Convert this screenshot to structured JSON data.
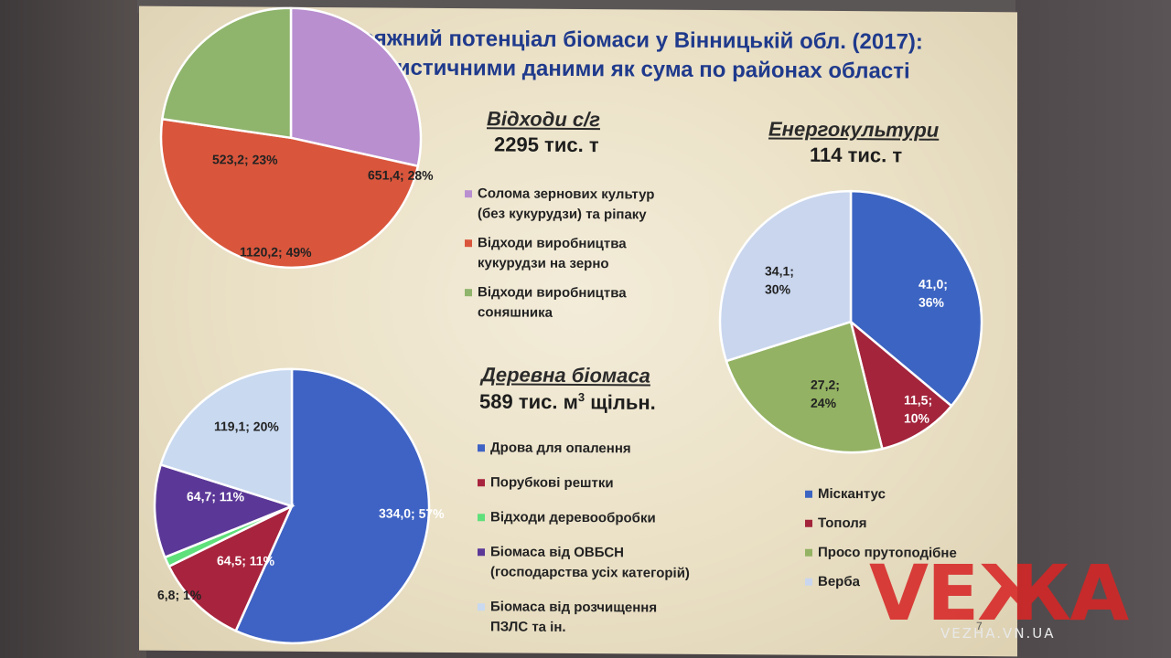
{
  "title": {
    "line1": "Технічно досяжний потенціал біомаси у Вінницькій обл. (2017):",
    "line2": "оцінка за статистичними даними як сума по районах області"
  },
  "page_number": "7",
  "watermark": {
    "logo": "VEЖA",
    "site": "VEZHA.VN.UA"
  },
  "sections": {
    "agri": {
      "header": "Відходи с/г",
      "total": "2295 тис. т"
    },
    "wood": {
      "header": "Деревна біомаса",
      "total_prefix": "589 тис. м",
      "total_sup": "3",
      "total_suffix": " щільн."
    },
    "energy": {
      "header": "Енергокультури",
      "total": "114 тис. т"
    }
  },
  "chart_data": [
    {
      "type": "pie",
      "title": "Відходи с/г",
      "subtitle": "2295 тис. т",
      "slices": [
        {
          "label": "Солома зернових культур (без кукурудзи) та ріпаку",
          "legend_lines": [
            "Солома зернових культур",
            "(без кукурудзи) та ріпаку"
          ],
          "value": 651.4,
          "percent": 28,
          "data_label_lines": [
            "651,4; 28%"
          ],
          "color": "#b98fd0"
        },
        {
          "label": "Відходи виробництва кукурудзи на зерно",
          "legend_lines": [
            "Відходи виробництва",
            "кукурудзи на зерно"
          ],
          "value": 1120.2,
          "percent": 49,
          "data_label_lines": [
            "1120,2; 49%"
          ],
          "color": "#d9563c"
        },
        {
          "label": "Відходи виробництва соняшника",
          "legend_lines": [
            "Відходи виробництва",
            "соняшника"
          ],
          "value": 523.2,
          "percent": 23,
          "data_label_lines": [
            "523,2; 23%"
          ],
          "color": "#8fb46c"
        }
      ]
    },
    {
      "type": "pie",
      "title": "Деревна біомаса",
      "subtitle": "589 тис. м3 щільн.",
      "slices": [
        {
          "label": "Дрова для опалення",
          "legend_lines": [
            "Дрова для опалення"
          ],
          "value": 334.0,
          "percent": 57,
          "data_label_lines": [
            "334,0; 57%"
          ],
          "color": "#3f63c4"
        },
        {
          "label": "Порубкові рештки",
          "legend_lines": [
            "Порубкові рештки"
          ],
          "value": 64.5,
          "percent": 11,
          "data_label_lines": [
            "64,5; 11%"
          ],
          "color": "#a8233d"
        },
        {
          "label": "Відходи деревообробки",
          "legend_lines": [
            "Відходи деревообробки"
          ],
          "value": 6.8,
          "percent": 1,
          "data_label_lines": [
            "6,8; 1%"
          ],
          "color": "#5fe07a"
        },
        {
          "label": "Біомаса від ОВБСН (господарства усіх категорій)",
          "legend_lines": [
            "Біомаса від ОВБСН",
            "(господарства усіх категорій)"
          ],
          "value": 64.7,
          "percent": 11,
          "data_label_lines": [
            "64,7; 11%"
          ],
          "color": "#5b3897"
        },
        {
          "label": "Біомаса від розчищення ПЗЛС та ін.",
          "legend_lines": [
            "Біомаса від розчищення",
            "ПЗЛС та ін."
          ],
          "value": 119.1,
          "percent": 20,
          "data_label_lines": [
            "119,1; 20%"
          ],
          "color": "#c8d9f0"
        }
      ]
    },
    {
      "type": "pie",
      "title": "Енергокультури",
      "subtitle": "114 тис. т",
      "slices": [
        {
          "label": "Міскантус",
          "legend_lines": [
            "Міскантус"
          ],
          "value": 41.0,
          "percent": 36,
          "data_label_lines": [
            "41,0;",
            "36%"
          ],
          "color": "#3c64c2"
        },
        {
          "label": "Тополя",
          "legend_lines": [
            "Тополя"
          ],
          "value": 11.5,
          "percent": 10,
          "data_label_lines": [
            "11,5;",
            "10%"
          ],
          "color": "#a3243b"
        },
        {
          "label": "Просо прутоподібне",
          "legend_lines": [
            "Просо прутоподібне"
          ],
          "value": 27.2,
          "percent": 24,
          "data_label_lines": [
            "27,2;",
            "24%"
          ],
          "color": "#93b263"
        },
        {
          "label": "Верба",
          "legend_lines": [
            "Верба"
          ],
          "value": 34.1,
          "percent": 30,
          "data_label_lines": [
            "34,1;",
            "30%"
          ],
          "color": "#c9d6ee"
        }
      ]
    }
  ]
}
